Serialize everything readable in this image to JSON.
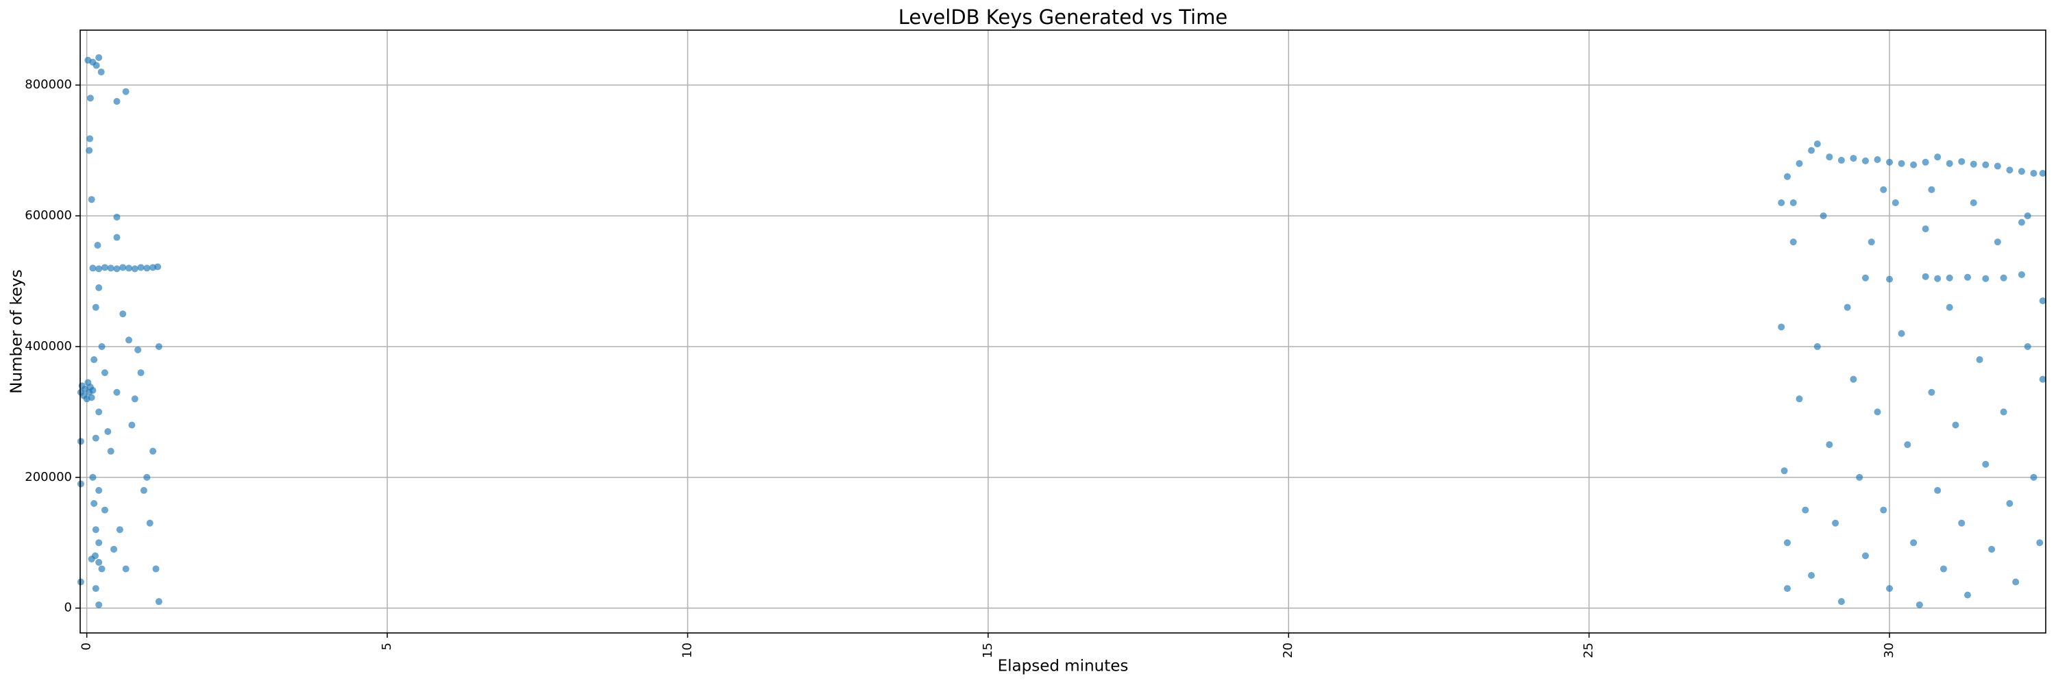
{
  "chart_data": {
    "type": "scatter",
    "title": "LevelDB Keys Generated vs Time",
    "x_label": "Elapsed minutes",
    "y_label": "Number of keys",
    "color": "#1f77b4",
    "grid": true,
    "xlim": [
      -0.11,
      32.6
    ],
    "ylim": [
      -38000,
      884000
    ],
    "xticks": [
      0,
      5,
      10,
      15,
      20,
      25,
      30
    ],
    "yticks": [
      0,
      200000,
      400000,
      600000,
      800000
    ],
    "x": [
      -0.1,
      -0.08,
      -0.05,
      -0.03,
      0,
      0.02,
      0.04,
      0.06,
      0.08,
      0.1,
      -0.1,
      -0.1,
      -0.1,
      0.02,
      0.1,
      0.16,
      0.2,
      0.24,
      0.06,
      0.05,
      0.04,
      0.08,
      0.18,
      0.5,
      0.65,
      0.5,
      0.5,
      0.1,
      0.2,
      0.3,
      0.4,
      0.5,
      0.6,
      0.7,
      0.8,
      0.9,
      1.0,
      1.1,
      1.18,
      0.15,
      0.2,
      0.25,
      0.12,
      0.2,
      0.15,
      0.1,
      0.2,
      0.12,
      0.15,
      0.2,
      0.08,
      0.14,
      0.2,
      0.25,
      0.15,
      0.2,
      0.3,
      0.4,
      0.5,
      0.6,
      0.7,
      0.75,
      0.8,
      0.9,
      1.0,
      1.05,
      1.1,
      1.15,
      1.2,
      1.2,
      0.85,
      0.95,
      0.55,
      0.65,
      0.45,
      0.35,
      0.3,
      28.2,
      28.3,
      28.5,
      28.7,
      28.8,
      29.0,
      29.2,
      29.4,
      29.6,
      29.8,
      30.0,
      30.2,
      30.4,
      30.6,
      30.8,
      31.0,
      31.2,
      31.4,
      31.6,
      31.8,
      32.0,
      32.2,
      32.4,
      32.55,
      29.6,
      30.0,
      30.6,
      30.8,
      31.0,
      31.3,
      31.6,
      31.9,
      32.2,
      28.2,
      28.25,
      28.3,
      28.3,
      28.4,
      28.5,
      28.6,
      28.7,
      28.8,
      28.9,
      29.0,
      29.1,
      29.2,
      29.3,
      29.4,
      29.5,
      29.6,
      29.7,
      29.8,
      29.9,
      30.0,
      30.1,
      30.2,
      30.3,
      30.4,
      30.5,
      30.6,
      30.7,
      30.8,
      30.9,
      31.0,
      31.1,
      31.2,
      31.3,
      31.4,
      31.5,
      31.6,
      31.7,
      31.8,
      31.9,
      32.0,
      32.1,
      32.2,
      32.3,
      32.4,
      32.5,
      32.55,
      32.55,
      28.4,
      29.9,
      30.7,
      32.3
    ],
    "y": [
      330000,
      340000,
      325000,
      335000,
      320000,
      345000,
      330000,
      338000,
      322000,
      333000,
      255000,
      190000,
      40000,
      838000,
      835000,
      830000,
      842000,
      820000,
      780000,
      718000,
      700000,
      625000,
      555000,
      775000,
      790000,
      598000,
      567000,
      520000,
      519000,
      521000,
      520000,
      519000,
      521000,
      520000,
      519000,
      521000,
      520000,
      521000,
      522000,
      460000,
      490000,
      400000,
      380000,
      300000,
      260000,
      200000,
      180000,
      160000,
      120000,
      100000,
      75000,
      80000,
      70000,
      60000,
      30000,
      5000,
      150000,
      240000,
      330000,
      450000,
      410000,
      280000,
      320000,
      360000,
      200000,
      130000,
      240000,
      60000,
      10000,
      400000,
      395000,
      180000,
      120000,
      60000,
      90000,
      270000,
      360000,
      620000,
      660000,
      680000,
      700000,
      710000,
      690000,
      685000,
      688000,
      684000,
      686000,
      682000,
      680000,
      678000,
      682000,
      690000,
      680000,
      683000,
      679000,
      678000,
      676000,
      670000,
      668000,
      665000,
      665000,
      505000,
      503000,
      507000,
      504000,
      505000,
      506000,
      504000,
      505000,
      510000,
      430000,
      210000,
      100000,
      30000,
      560000,
      320000,
      150000,
      50000,
      400000,
      600000,
      250000,
      130000,
      10000,
      460000,
      350000,
      200000,
      80000,
      560000,
      300000,
      150000,
      30000,
      620000,
      420000,
      250000,
      100000,
      5000,
      580000,
      330000,
      180000,
      60000,
      460000,
      280000,
      130000,
      20000,
      620000,
      380000,
      220000,
      90000,
      560000,
      300000,
      160000,
      40000,
      590000,
      400000,
      200000,
      100000,
      470000,
      350000,
      620000,
      640000,
      640000,
      600000
    ]
  }
}
